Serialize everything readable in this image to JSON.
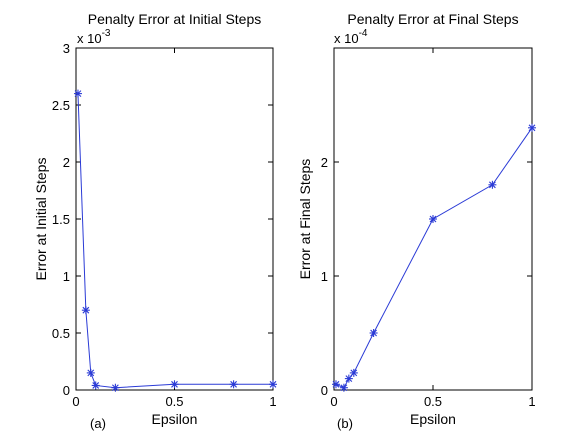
{
  "chart_data": [
    {
      "type": "line",
      "title": "Penalty Error at Initial Steps",
      "xlabel": "Epsilon",
      "ylabel": "Error at Initial Steps",
      "panel_label": "(a)",
      "exponent_label": "x 10",
      "exponent_power": "-3",
      "xlim": [
        0,
        1
      ],
      "ylim": [
        0,
        3
      ],
      "xticks": [
        0,
        0.5,
        1
      ],
      "xtick_labels": [
        "0",
        "0.5",
        "1"
      ],
      "yticks": [
        0,
        0.5,
        1,
        1.5,
        2,
        2.5,
        3
      ],
      "ytick_labels": [
        "0",
        "0.5",
        "1",
        "1.5",
        "2",
        "2.5",
        "3"
      ],
      "grid": false,
      "series": [
        {
          "color": "#2b3bd6",
          "marker": "asterisk",
          "x": [
            0.01,
            0.05,
            0.075,
            0.1,
            0.2,
            0.5,
            0.8,
            1.0
          ],
          "y": [
            2.6,
            0.7,
            0.15,
            0.04,
            0.02,
            0.05,
            0.05,
            0.05
          ]
        }
      ]
    },
    {
      "type": "line",
      "title": "Penalty Error at Final Steps",
      "xlabel": "Epsilon",
      "ylabel": "Error at Final Steps",
      "panel_label": "(b)",
      "exponent_label": "x 10",
      "exponent_power": "-4",
      "xlim": [
        0,
        1
      ],
      "ylim": [
        0,
        3
      ],
      "xticks": [
        0,
        0.5,
        1
      ],
      "xtick_labels": [
        "0",
        "0.5",
        "1"
      ],
      "yticks": [
        0,
        1,
        2
      ],
      "ytick_labels": [
        "0",
        "1",
        "2"
      ],
      "grid": false,
      "series": [
        {
          "color": "#2b3bd6",
          "marker": "asterisk",
          "x": [
            0.01,
            0.05,
            0.075,
            0.1,
            0.2,
            0.5,
            0.8,
            1.0
          ],
          "y": [
            0.05,
            0.02,
            0.1,
            0.15,
            0.5,
            1.5,
            1.8,
            2.3
          ]
        }
      ]
    }
  ]
}
